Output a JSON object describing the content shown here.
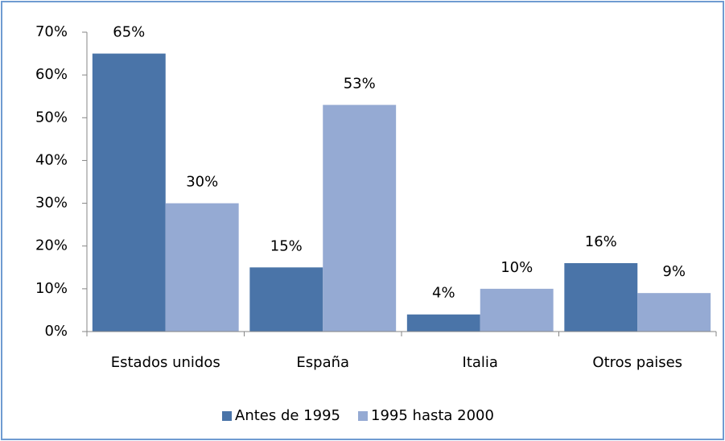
{
  "chart_data": {
    "type": "bar",
    "categories": [
      "Estados unidos",
      "España",
      "Italia",
      "Otros paises"
    ],
    "series": [
      {
        "name": "Antes de 1995",
        "color": "#4a74a8",
        "values": [
          65,
          15,
          4,
          16
        ],
        "value_labels": [
          "65%",
          "15%",
          "4%",
          "16%"
        ]
      },
      {
        "name": "1995 hasta 2000",
        "color": "#95aad3",
        "values": [
          30,
          53,
          10,
          9
        ],
        "value_labels": [
          "30%",
          "53%",
          "10%",
          "9%"
        ]
      }
    ],
    "ylim": [
      0,
      70
    ],
    "yticks": [
      {
        "value": 0,
        "label": "0%"
      },
      {
        "value": 10,
        "label": "10%"
      },
      {
        "value": 20,
        "label": "20%"
      },
      {
        "value": 30,
        "label": "30%"
      },
      {
        "value": 40,
        "label": "40%"
      },
      {
        "value": 50,
        "label": "50%"
      },
      {
        "value": 60,
        "label": "60%"
      },
      {
        "value": 70,
        "label": "70%"
      }
    ],
    "grid": false,
    "legend": "bottom"
  }
}
